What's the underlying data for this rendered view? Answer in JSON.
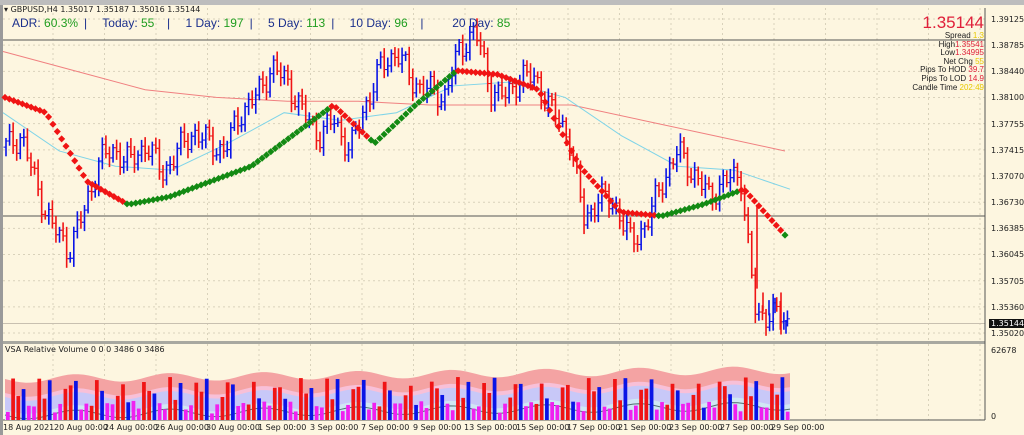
{
  "header": {
    "symbol_line": "GBPUSD,H4  1.35017 1.35187 1.35016 1.35144"
  },
  "adr_panel": {
    "items": [
      {
        "label": "ADR:",
        "value": "60.3%"
      },
      {
        "label": "Today:",
        "value": "55"
      },
      {
        "label": "1 Day:",
        "value": "197"
      },
      {
        "label": "5 Day:",
        "value": "113"
      },
      {
        "label": "10 Day:",
        "value": "96"
      },
      {
        "label": "20 Day:",
        "value": "85"
      }
    ]
  },
  "info_panel": {
    "price": "1.35144",
    "rows": [
      {
        "label": "Spread",
        "value": "1.3",
        "color": "yellow"
      },
      {
        "label": "High",
        "value": "1.35541",
        "color": "red"
      },
      {
        "label": "Low",
        "value": "1.34995",
        "color": "red"
      },
      {
        "label": "Net Chg",
        "value": "55",
        "color": "yellow"
      },
      {
        "label": "Pips To HOD",
        "value": "39.7",
        "color": "red"
      },
      {
        "label": "Pips To LOD",
        "value": "14.9",
        "color": "red"
      },
      {
        "label": "Candle Time",
        "value": "202:49",
        "color": "yellow"
      }
    ]
  },
  "price_axis": {
    "labels": [
      "1.39125",
      "1.38785",
      "1.38440",
      "1.38100",
      "1.37755",
      "1.37415",
      "1.37070",
      "1.36730",
      "1.36385",
      "1.36045",
      "1.35705",
      "1.35360",
      "1.35020"
    ],
    "current_price": "1.35144"
  },
  "volume_panel": {
    "title": "VSA Relative Volume 0 0 0 3486 0 3486",
    "max_label": "62678",
    "min_label": "0"
  },
  "time_axis": {
    "labels": [
      "18 Aug 2021",
      "20 Aug 00:00",
      "24 Aug 00:00",
      "26 Aug 00:00",
      "30 Aug 00:00",
      "1 Sep 00:00",
      "3 Sep 00:00",
      "7 Sep 00:00",
      "9 Sep 00:00",
      "13 Sep 00:00",
      "15 Sep 00:00",
      "17 Sep 00:00",
      "21 Sep 00:00",
      "23 Sep 00:00",
      "27 Sep 00:00",
      "29 Sep 00:00"
    ]
  },
  "colors": {
    "background": "#fdf6e0",
    "bull_bar": "#0a14e6",
    "bear_bar": "#f01414",
    "trend_up_dots": "#138a13",
    "trend_down_dots": "#f01414",
    "ma_fast": "#7fd4e8",
    "ma_slow": "#f08080",
    "vol_low": "#f020f0",
    "vol_band_outer": "#f4a3a3",
    "vol_band_inner": "#c8c8f8"
  },
  "chart_data": {
    "type": "ohlc",
    "title": "GBPUSD,H4",
    "xlabel": "",
    "ylabel": "",
    "ylim": [
      1.3495,
      1.3925
    ],
    "grid": true,
    "last_bar": {
      "open": 1.35017,
      "high": 1.35187,
      "low": 1.35016,
      "close": 1.35144
    },
    "horizontal_lines": [
      1.3885,
      1.3655
    ],
    "x_dates": [
      "18 Aug 2021",
      "20 Aug",
      "24 Aug",
      "26 Aug",
      "30 Aug",
      "1 Sep",
      "3 Sep",
      "7 Sep",
      "9 Sep",
      "13 Sep",
      "15 Sep",
      "17 Sep",
      "21 Sep",
      "23 Sep",
      "27 Sep",
      "29 Sep"
    ],
    "approx_close_path": [
      1.3745,
      1.376,
      1.369,
      1.364,
      1.361,
      1.366,
      1.373,
      1.374,
      1.3725,
      1.375,
      1.371,
      1.374,
      1.3765,
      1.375,
      1.374,
      1.379,
      1.381,
      1.385,
      1.383,
      1.379,
      1.376,
      1.378,
      1.374,
      1.38,
      1.385,
      1.387,
      1.383,
      1.382,
      1.381,
      1.387,
      1.39,
      1.382,
      1.381,
      1.384,
      1.383,
      1.379,
      1.376,
      1.365,
      1.368,
      1.367,
      1.362,
      1.3645,
      1.37,
      1.374,
      1.371,
      1.368,
      1.37,
      1.371,
      1.352,
      1.353,
      1.3514
    ],
    "series": [
      {
        "name": "Trend dots",
        "values": [
          1.381,
          1.379,
          1.37,
          1.367,
          1.368,
          1.37,
          1.372,
          1.376,
          1.38,
          1.375,
          1.38,
          1.3845,
          1.384,
          1.382,
          1.372,
          1.366,
          1.3655,
          1.367,
          1.369,
          1.363
        ]
      },
      {
        "name": "MA fast",
        "values": [
          1.379,
          1.374,
          1.372,
          1.3715,
          1.375,
          1.379,
          1.378,
          1.379,
          1.3825,
          1.383,
          1.381,
          1.376,
          1.372,
          1.3715,
          1.369
        ]
      },
      {
        "name": "MA slow",
        "values": [
          1.387,
          1.3845,
          1.382,
          1.381,
          1.3805,
          1.3805,
          1.38,
          1.38,
          1.38,
          1.378,
          1.376,
          1.374
        ]
      }
    ],
    "volume": {
      "max": 62678,
      "min": 0
    }
  }
}
